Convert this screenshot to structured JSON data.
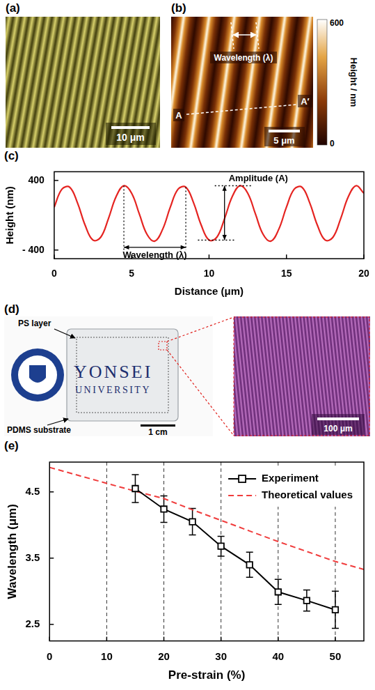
{
  "images": [
    {
      "panel": "(a)",
      "scale_bar": "10 μm"
    },
    {
      "panel": "(b)",
      "labels": [
        "Wavelength (λ)",
        "A",
        "A′"
      ],
      "scale_bar": "5 μm",
      "colorbar": {
        "label": "Height / nm",
        "range": [
          0,
          600
        ],
        "ticks": [
          0,
          600
        ]
      }
    },
    {
      "panel": "(d)",
      "labels": [
        "PS layer",
        "PDMS substrate"
      ],
      "logo_text": [
        "YONSEI",
        "UNIVERSITY"
      ],
      "scale_bars": [
        "1 cm",
        "100 μm"
      ]
    }
  ],
  "chart_data": [
    {
      "panel": "(c)",
      "type": "line",
      "xlabel": "Distance (μm)",
      "ylabel": "Height (nm)",
      "x": [
        0,
        0.5,
        1,
        1.5,
        2,
        2.5,
        3,
        3.5,
        4,
        4.5,
        5,
        5.5,
        6,
        6.5,
        7,
        7.5,
        8,
        8.5,
        9,
        9.5,
        10,
        10.5,
        11,
        11.5,
        12,
        12.5,
        13,
        13.5,
        14,
        14.5,
        15,
        15.5,
        16,
        16.5,
        17,
        17.5,
        18,
        18.5,
        19,
        19.5,
        20
      ],
      "values": [
        93,
        300,
        322,
        144,
        -116,
        -286,
        -254,
        -40,
        214,
        339,
        253,
        13,
        -222,
        -297,
        -163,
        93,
        300,
        322,
        144,
        -116,
        -286,
        -254,
        -40,
        214,
        339,
        253,
        13,
        -222,
        -297,
        -163,
        93,
        300,
        322,
        144,
        -116,
        -286,
        -254,
        -40,
        214,
        339,
        253
      ],
      "color": "#e52421",
      "annotations": [
        "Wavelength (λ)",
        "Amplitude (A)"
      ],
      "xlim": [
        0,
        20
      ],
      "xticks": [
        0,
        5,
        10,
        15,
        20
      ],
      "ylim": [
        -500,
        500
      ],
      "yticks": [
        {
          "value": -400,
          "label": "- 400"
        },
        400
      ],
      "grid": false
    },
    {
      "panel": "(e)",
      "type": "line",
      "xlabel": "Pre-strain (%)",
      "ylabel": "Wavelength (μm)",
      "series": [
        {
          "name": "Experiment",
          "color": "#000000",
          "marker": "square",
          "line_style": "solid",
          "x": [
            15,
            20,
            25,
            30,
            35,
            40,
            45,
            50
          ],
          "values": [
            4.55,
            4.24,
            4.05,
            3.68,
            3.4,
            2.99,
            2.86,
            2.72
          ],
          "errors": [
            0.21,
            0.2,
            0.2,
            0.15,
            0.19,
            0.19,
            0.16,
            0.28
          ]
        },
        {
          "name": "Theoretical values",
          "color": "#f03c3c",
          "marker": "none",
          "line_style": "dashed",
          "x": [
            0,
            5,
            10,
            15,
            20,
            25,
            30,
            35,
            40,
            45,
            50,
            55
          ],
          "values": [
            4.87,
            4.75,
            4.63,
            4.51,
            4.4,
            4.23,
            4.07,
            3.91,
            3.75,
            3.6,
            3.45,
            3.33
          ]
        }
      ],
      "xlim": [
        0,
        55
      ],
      "xticks": [
        0,
        10,
        20,
        30,
        40,
        50
      ],
      "ylim": [
        2.25,
        4.95
      ],
      "yticks": [
        2.5,
        3.5,
        4.5
      ],
      "grid": "x",
      "legend": "upper right"
    }
  ]
}
